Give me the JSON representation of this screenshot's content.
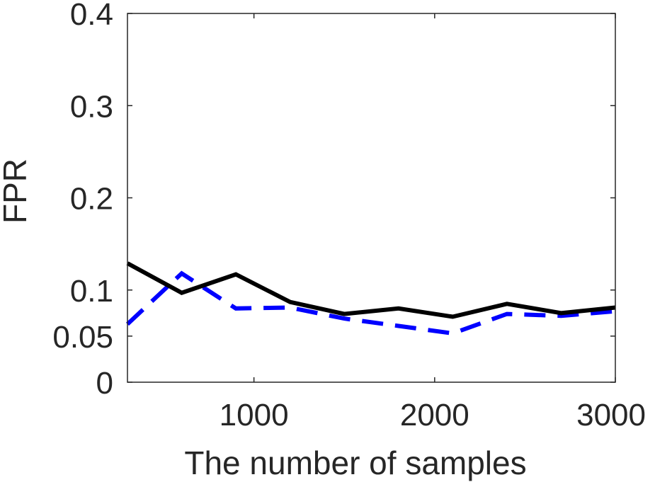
{
  "chart_data": {
    "type": "line",
    "title": "",
    "xlabel": "The number of samples",
    "ylabel": "FPR",
    "xlim": [
      300,
      3000
    ],
    "ylim": [
      0,
      0.4
    ],
    "xticks": [
      1000,
      2000,
      3000
    ],
    "xtick_labels": [
      "1000",
      "2000",
      "3000"
    ],
    "yticks": [
      0,
      0.05,
      0.1,
      0.2,
      0.3,
      0.4
    ],
    "ytick_labels": [
      "0",
      "0.05",
      "0.1",
      "0.2",
      "0.3",
      "0.4"
    ],
    "grid": false,
    "x": [
      300,
      600,
      900,
      1200,
      1500,
      1800,
      2100,
      2400,
      2700,
      3000
    ],
    "series": [
      {
        "style": "solid",
        "color": "#000000",
        "values": [
          0.129,
          0.097,
          0.117,
          0.087,
          0.074,
          0.08,
          0.071,
          0.085,
          0.075,
          0.081
        ]
      },
      {
        "style": "dashed",
        "color": "#0000ff",
        "values": [
          0.063,
          0.118,
          0.08,
          0.081,
          0.069,
          0.061,
          0.053,
          0.074,
          0.072,
          0.077
        ]
      }
    ]
  }
}
